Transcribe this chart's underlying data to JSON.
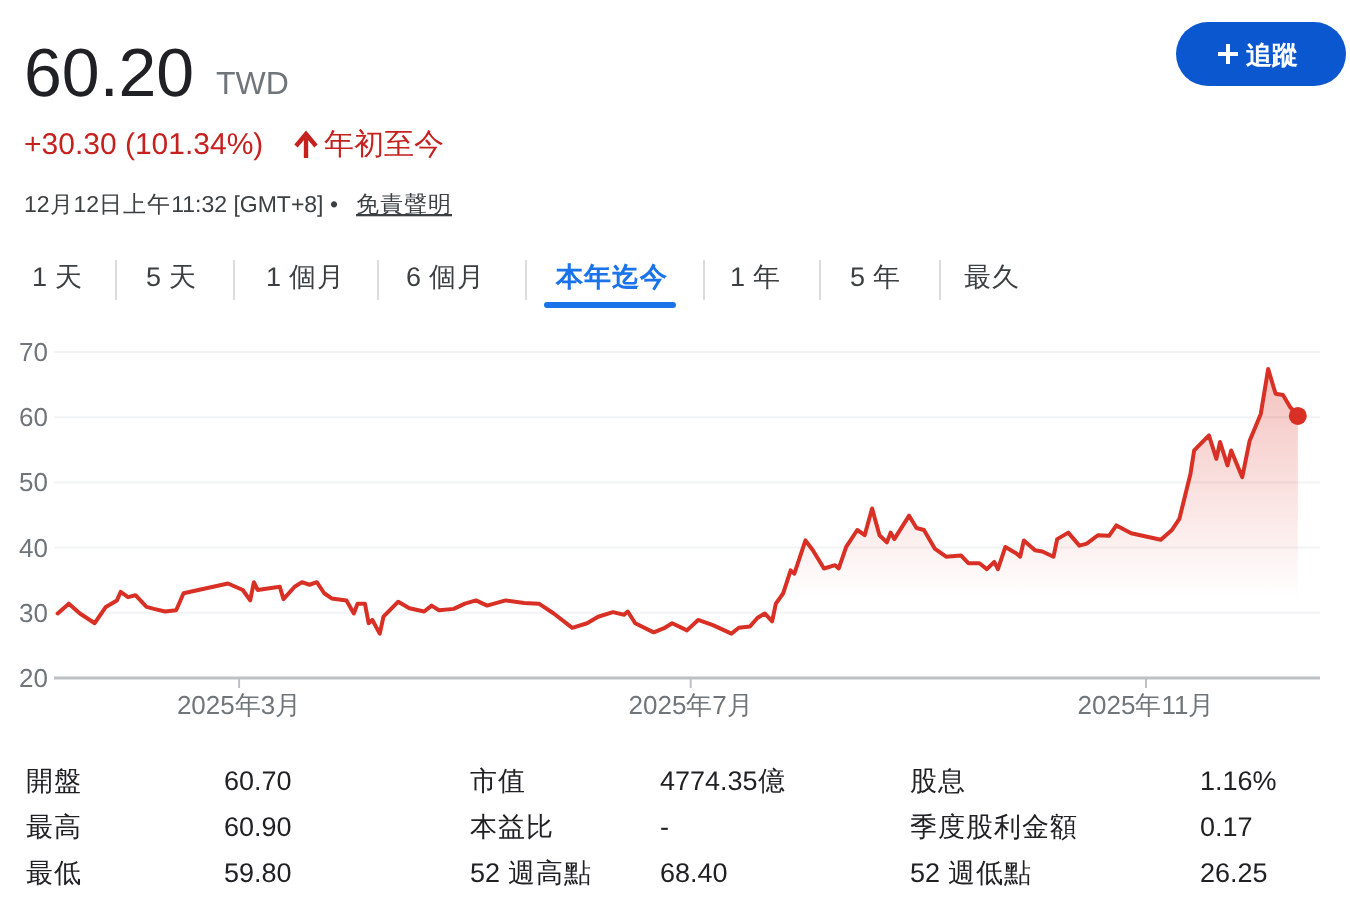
{
  "chart_data": {
    "type": "area",
    "title": "60.20",
    "subtitle": "TWD",
    "annotations": [
      "+30.30 (101.34%)",
      "年初至今",
      "12月12日上午11:32 [GMT+8] •",
      "免責聲明",
      "追蹤",
      "1 天",
      "5 天",
      "1 個月",
      "6 個月",
      "本年迄今",
      "1 年",
      "5 年",
      "最久",
      "開盤",
      "60.70",
      "市值",
      "4774.35億",
      "股息",
      "1.16%",
      "最高",
      "60.90",
      "本益比",
      "-",
      "季度股利金額",
      "0.17",
      "最低",
      "59.80",
      "52 週高點",
      "68.40",
      "52 週低點",
      "26.25"
    ],
    "xlim": [
      "2025-01-10",
      "2025-12-18"
    ],
    "xticks": [
      {
        "value": "2025-03-01",
        "label": "2025年3月"
      },
      {
        "value": "2025-07-01",
        "label": "2025年7月"
      },
      {
        "value": "2025-11-01",
        "label": "2025年11月"
      }
    ],
    "ylim": [
      20,
      70
    ],
    "yticks": [
      20,
      30,
      40,
      50,
      60,
      70
    ],
    "grid": "y",
    "series": [
      {
        "color": "#d93025",
        "x": [
          "2025-01-11",
          "2025-01-14",
          "2025-01-17",
          "2025-01-21",
          "2025-01-24",
          "2025-01-27",
          "2025-01-28",
          "2025-01-30",
          "2025-02-01",
          "2025-02-04",
          "2025-02-06",
          "2025-02-09",
          "2025-02-12",
          "2025-02-14",
          "2025-02-18",
          "2025-02-22",
          "2025-02-26",
          "2025-03-02",
          "2025-03-04",
          "2025-03-05",
          "2025-03-06",
          "2025-03-12",
          "2025-03-13",
          "2025-03-16",
          "2025-03-18",
          "2025-03-20",
          "2025-03-22",
          "2025-03-24",
          "2025-03-26",
          "2025-03-30",
          "2025-04-01",
          "2025-04-02",
          "2025-04-04",
          "2025-04-05",
          "2025-04-06",
          "2025-04-08",
          "2025-04-09",
          "2025-04-13",
          "2025-04-16",
          "2025-04-20",
          "2025-04-22",
          "2025-04-24",
          "2025-04-28",
          "2025-05-01",
          "2025-05-04",
          "2025-05-07",
          "2025-05-12",
          "2025-05-17",
          "2025-05-21",
          "2025-05-25",
          "2025-05-30",
          "2025-06-03",
          "2025-06-06",
          "2025-06-10",
          "2025-06-13",
          "2025-06-14",
          "2025-06-16",
          "2025-06-21",
          "2025-06-24",
          "2025-06-26",
          "2025-06-30",
          "2025-07-03",
          "2025-07-07",
          "2025-07-12",
          "2025-07-14",
          "2025-07-17",
          "2025-07-19",
          "2025-07-21",
          "2025-07-23",
          "2025-07-24",
          "2025-07-26",
          "2025-07-28",
          "2025-07-29",
          "2025-08-01",
          "2025-08-03",
          "2025-08-06",
          "2025-08-09",
          "2025-08-10",
          "2025-08-12",
          "2025-08-15",
          "2025-08-17",
          "2025-08-19",
          "2025-08-21",
          "2025-08-23",
          "2025-08-24",
          "2025-08-25",
          "2025-08-29",
          "2025-08-31",
          "2025-09-02",
          "2025-09-05",
          "2025-09-08",
          "2025-09-12",
          "2025-09-14",
          "2025-09-17",
          "2025-09-19",
          "2025-09-21",
          "2025-09-22",
          "2025-09-24",
          "2025-09-27",
          "2025-09-28",
          "2025-09-29",
          "2025-10-02",
          "2025-10-04",
          "2025-10-07",
          "2025-10-08",
          "2025-10-11",
          "2025-10-14",
          "2025-10-16",
          "2025-10-19",
          "2025-10-22",
          "2025-10-24",
          "2025-10-28",
          "2025-11-01",
          "2025-11-05",
          "2025-11-08",
          "2025-11-10",
          "2025-11-13",
          "2025-11-14",
          "2025-11-18",
          "2025-11-20",
          "2025-11-21",
          "2025-11-23",
          "2025-11-24",
          "2025-11-27",
          "2025-11-29",
          "2025-12-02",
          "2025-12-04",
          "2025-12-06",
          "2025-12-08",
          "2025-12-10",
          "2025-12-12"
        ],
        "values": [
          29.9,
          31.4,
          29.9,
          28.4,
          30.9,
          31.9,
          33.2,
          32.4,
          32.7,
          30.9,
          30.6,
          30.2,
          30.4,
          33.0,
          33.5,
          34.0,
          34.5,
          33.5,
          31.9,
          34.7,
          33.5,
          34.0,
          32.1,
          34.0,
          34.7,
          34.3,
          34.7,
          33.0,
          32.2,
          31.9,
          29.9,
          31.4,
          31.4,
          28.4,
          28.9,
          26.8,
          29.4,
          31.7,
          30.7,
          30.2,
          31.1,
          30.4,
          30.6,
          31.4,
          31.9,
          31.1,
          31.9,
          31.5,
          31.4,
          29.9,
          27.7,
          28.4,
          29.4,
          30.1,
          29.7,
          30.2,
          28.4,
          27.0,
          27.7,
          28.4,
          27.3,
          28.9,
          28.1,
          26.8,
          27.7,
          27.9,
          29.2,
          29.9,
          28.7,
          31.4,
          33.0,
          36.5,
          36.0,
          41.1,
          39.6,
          36.8,
          37.3,
          36.8,
          40.1,
          42.7,
          41.9,
          46.0,
          41.9,
          40.8,
          42.3,
          41.3,
          44.9,
          43.0,
          42.7,
          39.8,
          38.6,
          38.8,
          37.6,
          37.6,
          36.7,
          37.8,
          36.7,
          40.1,
          39.1,
          38.6,
          41.1,
          39.6,
          39.4,
          38.6,
          41.3,
          42.3,
          40.3,
          40.6,
          41.9,
          41.8,
          43.4,
          42.2,
          41.7,
          41.2,
          42.7,
          44.4,
          51.3,
          54.9,
          57.2,
          53.6,
          56.2,
          52.6,
          54.9,
          50.8,
          56.4,
          60.5,
          67.4,
          63.6,
          63.4,
          61.5,
          60.2
        ]
      }
    ]
  }
}
